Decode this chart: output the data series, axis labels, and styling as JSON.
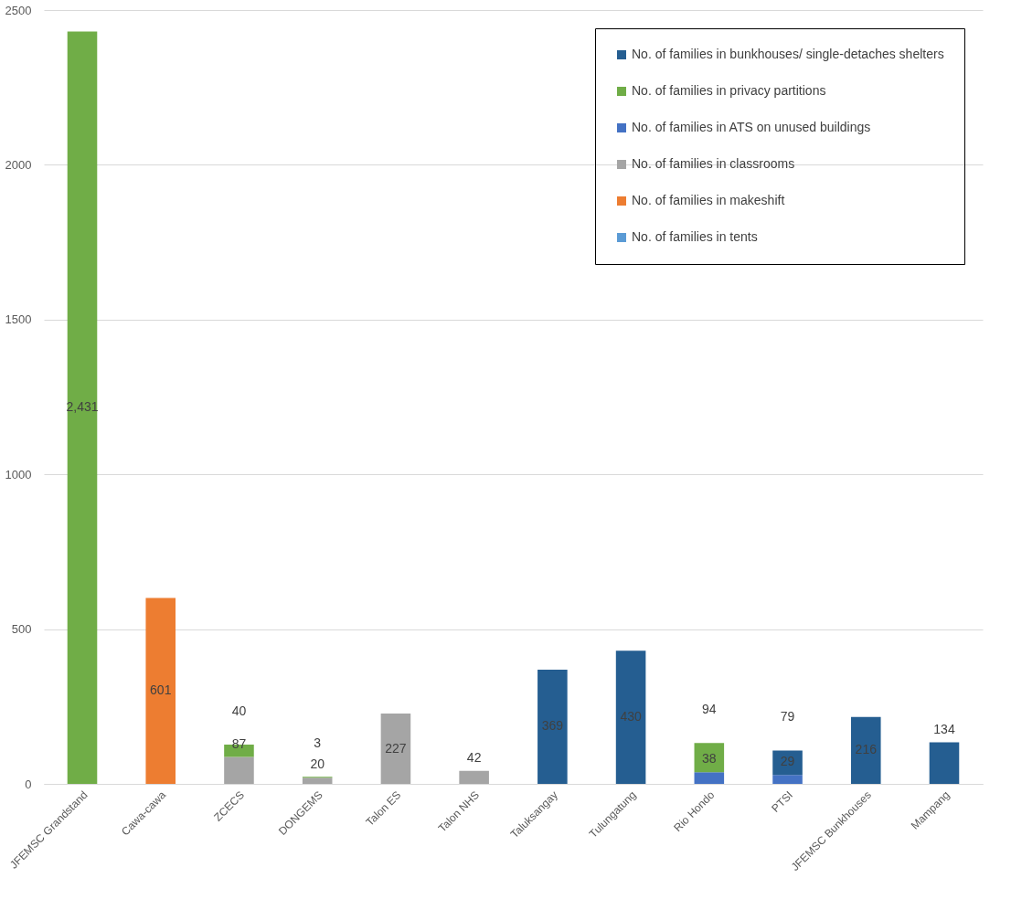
{
  "chart_data": {
    "type": "bar",
    "stacked": true,
    "categories": [
      "JFEMSC Grandstand",
      "Cawa-cawa",
      "ZCECS",
      "DONGEMS",
      "Talon ES",
      "Talon NHS",
      "Taluksangay",
      "Tulungatung",
      "Rio Hondo",
      "PTSI",
      "JFEMSC Bunkhouses",
      "Mampang"
    ],
    "series": [
      {
        "name": "No. of families in tents",
        "color": "#5b9bd5",
        "values": [
          null,
          null,
          null,
          null,
          null,
          null,
          null,
          null,
          null,
          null,
          null,
          null
        ],
        "value_labels": [
          null,
          null,
          null,
          null,
          null,
          null,
          null,
          null,
          null,
          null,
          null,
          null
        ]
      },
      {
        "name": "No. of families in makeshift",
        "color": "#ed7d31",
        "values": [
          null,
          601,
          null,
          null,
          null,
          null,
          null,
          null,
          null,
          null,
          null,
          null
        ],
        "value_labels": [
          null,
          "601",
          null,
          null,
          null,
          null,
          null,
          null,
          null,
          null,
          null,
          null
        ]
      },
      {
        "name": "No. of families in classrooms",
        "color": "#a5a5a5",
        "values": [
          null,
          null,
          87,
          20,
          227,
          42,
          null,
          null,
          null,
          null,
          null,
          null
        ],
        "value_labels": [
          null,
          null,
          "87",
          "20",
          "227",
          "42",
          null,
          null,
          null,
          null,
          null,
          null
        ]
      },
      {
        "name": "No. of families in ATS on unused buildings",
        "color": "#4472c4",
        "values": [
          null,
          null,
          null,
          null,
          null,
          null,
          null,
          null,
          38,
          29,
          null,
          null
        ],
        "value_labels": [
          null,
          null,
          null,
          null,
          null,
          null,
          null,
          null,
          "38",
          "29",
          null,
          null
        ]
      },
      {
        "name": "No. of families in privacy partitions",
        "color": "#70ad47",
        "values": [
          2431,
          null,
          40,
          3,
          null,
          null,
          null,
          null,
          94,
          null,
          null,
          null
        ],
        "value_labels": [
          "2,431",
          null,
          "40",
          "3",
          null,
          null,
          null,
          null,
          "94",
          null,
          null,
          null
        ]
      },
      {
        "name": "No. of families in bunkhouses/ single-detaches shelters",
        "color": "#255e91",
        "values": [
          null,
          null,
          null,
          null,
          null,
          null,
          369,
          430,
          null,
          79,
          216,
          134
        ],
        "value_labels": [
          null,
          null,
          null,
          null,
          null,
          null,
          "369",
          "430",
          null,
          "79",
          "216",
          "134"
        ]
      }
    ],
    "ylim": [
      0,
      2500
    ],
    "yticks": [
      0,
      500,
      {
        "value": 1000,
        "label": "1000"
      },
      {
        "value": 1500,
        "label": "1500"
      },
      {
        "value": 2000,
        "label": "2000"
      },
      {
        "value": 2500,
        "label": "2500"
      }
    ],
    "grid": "y",
    "legend": "top right"
  }
}
